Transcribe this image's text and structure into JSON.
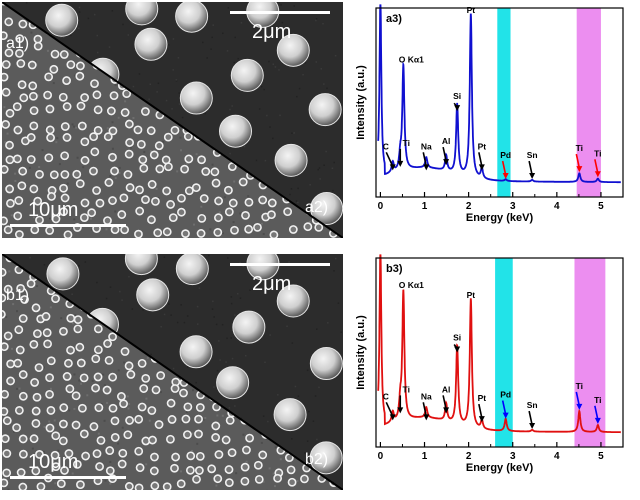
{
  "figure": {
    "panels": [
      {
        "id": "a",
        "sem_low_label": "a1)",
        "sem_high_label": "a2)",
        "scalebar_low": "10μm",
        "scalebar_high": "2μm"
      },
      {
        "id": "b",
        "sem_low_label": "b1)",
        "sem_high_label": "b2)",
        "scalebar_low": "10μm",
        "scalebar_high": "2μm"
      }
    ]
  },
  "chart_data": [
    {
      "type": "line",
      "panel_label": "a3)",
      "xlabel": "Energy (keV)",
      "ylabel": "Intensity (a.u.)",
      "xlim": [
        -0.1,
        5.5
      ],
      "x_ticks": [
        0,
        1,
        2,
        3,
        4,
        5
      ],
      "line_color": "#1010d0",
      "highlight_bands": [
        {
          "name": "Pd",
          "range": [
            2.65,
            2.95
          ],
          "color": "#22e3e8"
        },
        {
          "name": "Ti",
          "range": [
            4.45,
            5.0
          ],
          "color": "#ec8ef0"
        }
      ],
      "peaks": [
        {
          "label": "C",
          "x": 0.28,
          "height": 0.06,
          "arrow_color": "#000000"
        },
        {
          "label": "Ti",
          "x": 0.45,
          "height": 0.08,
          "arrow_color": "#000000"
        },
        {
          "label": "O Kα1",
          "x": 0.52,
          "height": 0.6,
          "arrow_color": "#000000"
        },
        {
          "label": "Na",
          "x": 1.04,
          "height": 0.06,
          "arrow_color": "#000000"
        },
        {
          "label": "Al",
          "x": 1.49,
          "height": 0.09,
          "arrow_color": "#000000"
        },
        {
          "label": "Si",
          "x": 1.74,
          "height": 0.4,
          "arrow_color": "#000000"
        },
        {
          "label": "Pt",
          "x": 2.05,
          "height": 0.94,
          "arrow_color": "#000000"
        },
        {
          "label": "Pt",
          "x": 2.3,
          "height": 0.06,
          "arrow_color": "#000000"
        },
        {
          "label": "Pd",
          "x": 2.84,
          "height": 0.01,
          "arrow_color": "#ff0000"
        },
        {
          "label": "Sn",
          "x": 3.44,
          "height": 0.01,
          "arrow_color": "#000000"
        },
        {
          "label": "Ti",
          "x": 4.51,
          "height": 0.05,
          "arrow_color": "#ff0000"
        },
        {
          "label": "Ti",
          "x": 4.93,
          "height": 0.02,
          "arrow_color": "#ff0000"
        }
      ]
    },
    {
      "type": "line",
      "panel_label": "b3)",
      "xlabel": "Energy (keV)",
      "ylabel": "Intensity (a.u.)",
      "xlim": [
        -0.1,
        5.5
      ],
      "x_ticks": [
        0,
        1,
        2,
        3,
        4,
        5
      ],
      "line_color": "#e01010",
      "highlight_bands": [
        {
          "name": "Pd",
          "range": [
            2.6,
            3.0
          ],
          "color": "#22e3e8"
        },
        {
          "name": "Ti",
          "range": [
            4.4,
            5.1
          ],
          "color": "#ec8ef0"
        }
      ],
      "peaks": [
        {
          "label": "C",
          "x": 0.28,
          "height": 0.06,
          "arrow_color": "#000000"
        },
        {
          "label": "Ti",
          "x": 0.45,
          "height": 0.1,
          "arrow_color": "#000000"
        },
        {
          "label": "O Kα1",
          "x": 0.52,
          "height": 0.74,
          "arrow_color": "#000000"
        },
        {
          "label": "Na",
          "x": 1.04,
          "height": 0.06,
          "arrow_color": "#000000"
        },
        {
          "label": "Al",
          "x": 1.49,
          "height": 0.1,
          "arrow_color": "#000000"
        },
        {
          "label": "Si",
          "x": 1.74,
          "height": 0.45,
          "arrow_color": "#000000"
        },
        {
          "label": "Pt",
          "x": 2.05,
          "height": 0.74,
          "arrow_color": "#000000"
        },
        {
          "label": "Pt",
          "x": 2.3,
          "height": 0.05,
          "arrow_color": "#000000"
        },
        {
          "label": "Pd",
          "x": 2.84,
          "height": 0.07,
          "arrow_color": "#0000ff"
        },
        {
          "label": "Sn",
          "x": 3.44,
          "height": 0.01,
          "arrow_color": "#000000"
        },
        {
          "label": "Ti",
          "x": 4.51,
          "height": 0.12,
          "arrow_color": "#0000ff"
        },
        {
          "label": "Ti",
          "x": 4.93,
          "height": 0.04,
          "arrow_color": "#0000ff"
        }
      ]
    }
  ]
}
